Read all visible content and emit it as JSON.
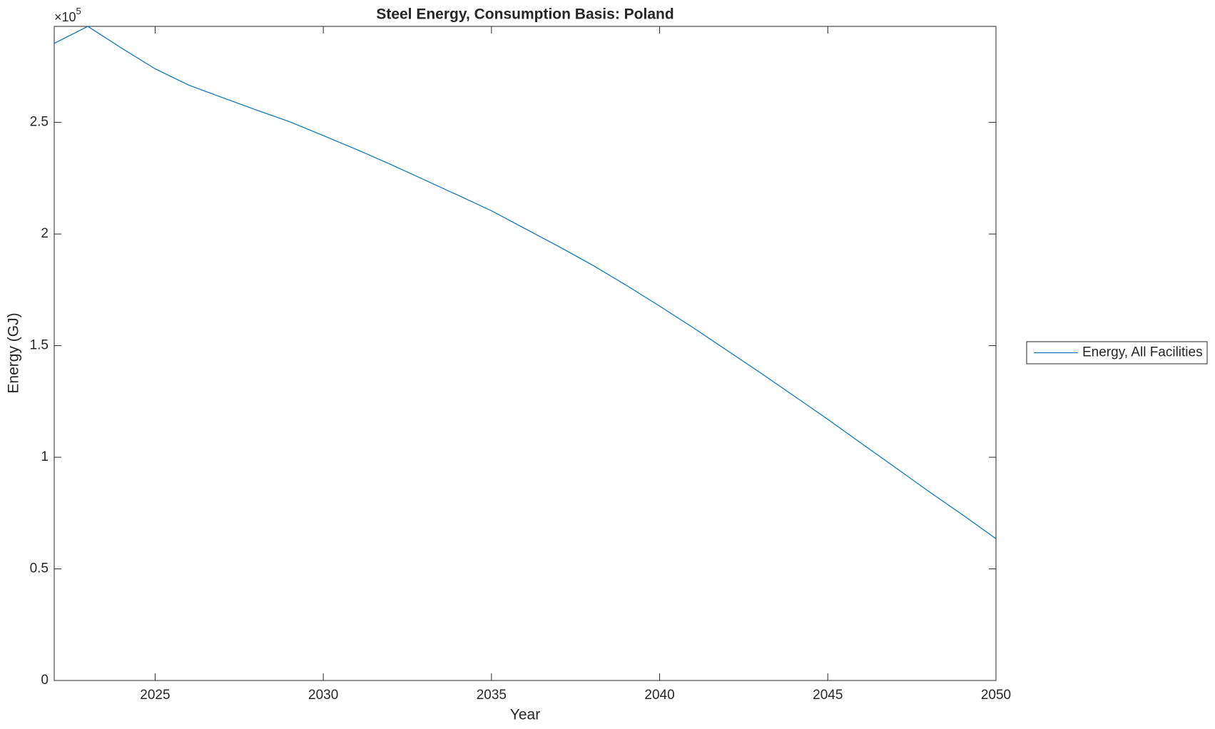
{
  "chart_data": {
    "type": "line",
    "title": "Steel Energy, Consumption Basis: Poland",
    "x_label": "Year",
    "y_label": "Energy (GJ)",
    "y_multiplier": "×10",
    "y_multiplier_exponent": "5",
    "x": [
      2022,
      2023,
      2024,
      2025,
      2026,
      2027,
      2028,
      2029,
      2030,
      2031,
      2032,
      2033,
      2034,
      2035,
      2036,
      2037,
      2038,
      2039,
      2040,
      2041,
      2042,
      2043,
      2044,
      2045,
      2046,
      2047,
      2048,
      2049,
      2050
    ],
    "series": [
      {
        "name": "Energy, All Facilities",
        "color": "#0072bd",
        "values": [
          285400,
          293000,
          283300,
          274000,
          266700,
          261100,
          255600,
          250300,
          244100,
          237800,
          231200,
          224300,
          217400,
          210400,
          202400,
          194400,
          186100,
          177100,
          167700,
          158000,
          147900,
          137800,
          127400,
          117000,
          106200,
          95500,
          84700,
          74300,
          63500
        ]
      }
    ],
    "xlim": [
      2022,
      2050
    ],
    "xticks": [
      2025,
      2030,
      2035,
      2040,
      2045,
      2050
    ],
    "ylim": [
      0,
      293000
    ],
    "yticks": [
      0,
      {
        "value": 50000,
        "label": "0.5"
      },
      {
        "value": 100000,
        "label": "1"
      },
      {
        "value": 150000,
        "label": "1.5"
      },
      {
        "value": 200000,
        "label": "2"
      },
      {
        "value": 250000,
        "label": "2.5"
      }
    ],
    "grid": false,
    "legend": "outside-right"
  }
}
